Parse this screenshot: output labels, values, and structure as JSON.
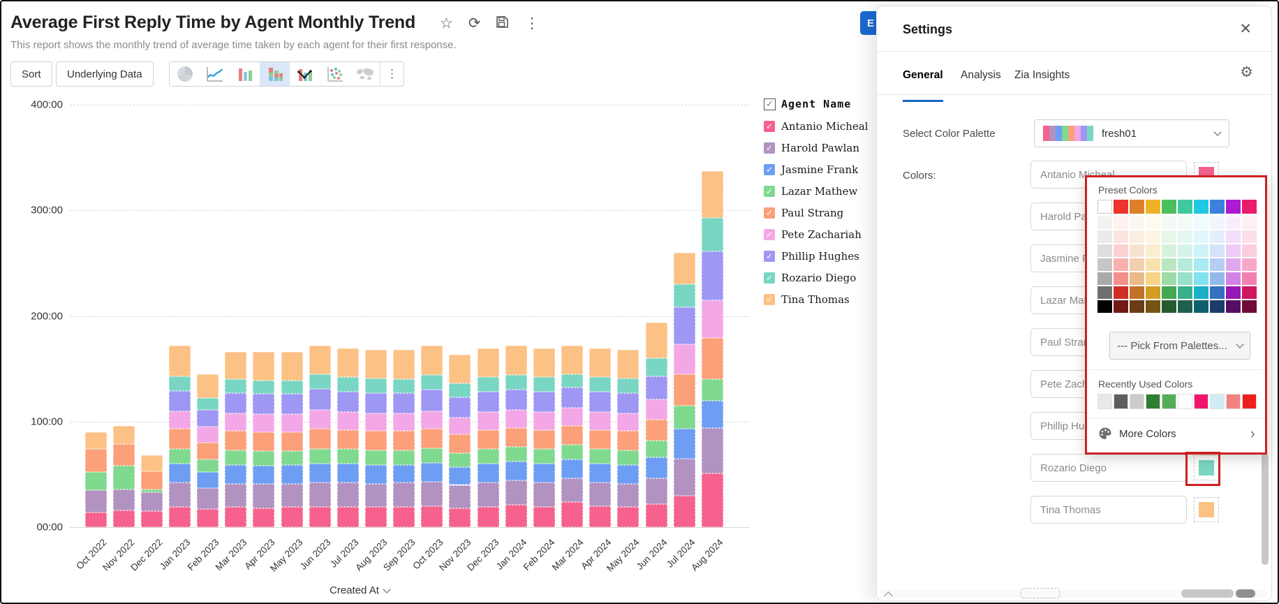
{
  "header": {
    "title": "Average First Reply Time by Agent Monthly Trend",
    "subtitle": "This report shows the monthly trend of average time taken by each agent for their first response.",
    "icons": {
      "star": "☆",
      "refresh": "⟳",
      "kebab": "⋮"
    }
  },
  "toolbar": {
    "sort_label": "Sort",
    "underlying_data_label": "Underlying Data",
    "chart_types": [
      "pie-chart",
      "line-chart",
      "bar-chart",
      "stacked-bar-chart",
      "combo-chart",
      "scatter-chart",
      "map-chart"
    ],
    "selected_chart_type": "stacked-bar-chart",
    "kebab": "⋮"
  },
  "edit_button": {
    "visible_label": "E"
  },
  "legend": {
    "header": "Agent Name",
    "check_glyph": "✓"
  },
  "agents": [
    {
      "name": "Antanio Micheal",
      "color": "#F6628D"
    },
    {
      "name": "Harold Pawlan",
      "color": "#B292C1"
    },
    {
      "name": "Jasmine Frank",
      "color": "#6D9EF4"
    },
    {
      "name": "Lazar Mathew",
      "color": "#7FD98F"
    },
    {
      "name": "Paul Strang",
      "color": "#FBA078"
    },
    {
      "name": "Pete Zachariah",
      "color": "#F3A7E6"
    },
    {
      "name": "Phillip Hughes",
      "color": "#9E97F4"
    },
    {
      "name": "Rozario Diego",
      "color": "#79D6C3"
    },
    {
      "name": "Tina Thomas",
      "color": "#FCC184"
    }
  ],
  "chart_data": {
    "type": "bar",
    "stacked": true,
    "title": "Average First Reply Time by Agent Monthly Trend",
    "xlabel": "Created At",
    "ylabel": "",
    "ylim": [
      0,
      400
    ],
    "y_tick_labels": [
      "00:00",
      "100:00",
      "200:00",
      "300:00",
      "400:00"
    ],
    "y_tick_values": [
      0,
      100,
      200,
      300,
      400
    ],
    "grid": "dashed-horizontal",
    "legend_position": "right",
    "categories": [
      "Oct 2022",
      "Nov 2022",
      "Dec 2022",
      "Jan 2023",
      "Feb 2023",
      "Mar 2023",
      "Apr 2023",
      "May 2023",
      "Jun 2023",
      "Jul 2023",
      "Aug 2023",
      "Sep 2023",
      "Oct 2023",
      "Nov 2023",
      "Dec 2023",
      "Jan 2024",
      "Feb 2024",
      "Mar 2024",
      "Apr 2024",
      "May 2024",
      "Jun 2024",
      "Jul 2024",
      "Aug 2024"
    ],
    "series": [
      {
        "name": "Antanio Micheal",
        "values": [
          14,
          16,
          15,
          19,
          17,
          19,
          18,
          19,
          19,
          19,
          19,
          19,
          20,
          18,
          19,
          21,
          19,
          24,
          20,
          19,
          22,
          30,
          51
        ]
      },
      {
        "name": "Harold Pawlan",
        "values": [
          21,
          20,
          18,
          23,
          20,
          22,
          23,
          22,
          23,
          23,
          22,
          23,
          23,
          22,
          23,
          23,
          23,
          22,
          22,
          22,
          24,
          35,
          43
        ]
      },
      {
        "name": "Jasmine Frank",
        "values": [
          0,
          0,
          0,
          18,
          15,
          18,
          17,
          18,
          18,
          18,
          18,
          17,
          18,
          17,
          18,
          18,
          18,
          18,
          18,
          18,
          20,
          28,
          26
        ]
      },
      {
        "name": "Lazar Mathew",
        "values": [
          17,
          22,
          3,
          14,
          12,
          14,
          14,
          13,
          14,
          14,
          14,
          14,
          14,
          13,
          14,
          14,
          14,
          14,
          14,
          14,
          16,
          22,
          20
        ]
      },
      {
        "name": "Paul Strang",
        "values": [
          22,
          21,
          17,
          19,
          16,
          18,
          18,
          18,
          19,
          18,
          18,
          18,
          18,
          18,
          18,
          18,
          18,
          18,
          18,
          18,
          20,
          30,
          39
        ]
      },
      {
        "name": "Pete Zachariah",
        "values": [
          0,
          0,
          0,
          17,
          15,
          17,
          17,
          17,
          18,
          17,
          17,
          17,
          17,
          16,
          17,
          17,
          17,
          17,
          17,
          17,
          19,
          28,
          36
        ]
      },
      {
        "name": "Phillip Hughes",
        "values": [
          0,
          0,
          0,
          19,
          16,
          19,
          19,
          19,
          20,
          19,
          19,
          19,
          20,
          19,
          19,
          19,
          19,
          19,
          19,
          19,
          22,
          35,
          46
        ]
      },
      {
        "name": "Rozario Diego",
        "values": [
          0,
          0,
          0,
          14,
          11,
          13,
          13,
          13,
          14,
          14,
          14,
          13,
          14,
          13,
          14,
          14,
          14,
          13,
          14,
          14,
          17,
          22,
          32
        ]
      },
      {
        "name": "Tina Thomas",
        "values": [
          16,
          17,
          15,
          29,
          23,
          26,
          27,
          27,
          27,
          27,
          27,
          28,
          28,
          27,
          27,
          28,
          27,
          27,
          27,
          27,
          34,
          30,
          44
        ]
      }
    ]
  },
  "settings_panel": {
    "title": "Settings",
    "close_glyph": "✕",
    "gear_glyph": "⚙",
    "tabs": {
      "general": "General",
      "analysis": "Analysis",
      "zia": "Zia Insights"
    },
    "palette_label": "Select Color Palette",
    "palette_value": "fresh01",
    "colors_label": "Colors:"
  },
  "color_popup": {
    "preset_title": "Preset Colors",
    "pick_from_palettes": "--- Pick From Palettes...",
    "recent_title": "Recently Used Colors",
    "more_colors": "More Colors",
    "more_colors_arrow": "›",
    "grayscale_column": [
      "#FFFFFF",
      "#F2F2F2",
      "#EAEAEA",
      "#DEDEDE",
      "#C6C6C6",
      "#A9A9A9",
      "#6F6F6F",
      "#000000"
    ],
    "base_columns": [
      "#ED332B",
      "#DD802B",
      "#EFB227",
      "#4DBE5F",
      "#3FC99D",
      "#1FC8E3",
      "#3B80DD",
      "#AC1BD1",
      "#EA1A6D"
    ],
    "white_mix_steps": [
      0.93,
      0.86,
      0.78,
      0.62,
      0.45
    ],
    "black_mix_steps": [
      0.12,
      0.52
    ],
    "recently_used": [
      "#E8E8E8",
      "#5E5E5E",
      "#CBCBCB",
      "#2F7D31",
      "#53AE58",
      "#FFFFFF",
      "#F2156F",
      "#CFECF5",
      "#F2827F",
      "#EE201D"
    ]
  },
  "annotation_color": "#CC2020"
}
